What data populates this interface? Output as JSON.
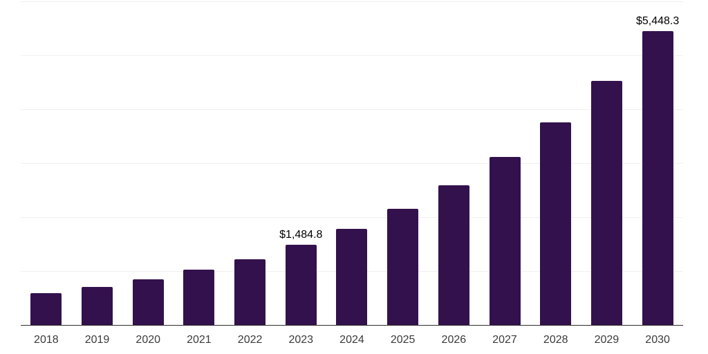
{
  "chart_data": {
    "type": "bar",
    "title": "",
    "xlabel": "",
    "ylabel": "",
    "categories": [
      "2018",
      "2019",
      "2020",
      "2021",
      "2022",
      "2023",
      "2024",
      "2025",
      "2026",
      "2027",
      "2028",
      "2029",
      "2030"
    ],
    "values": [
      590,
      706,
      846,
      1020,
      1218,
      1484.8,
      1787,
      2152,
      2591,
      3120,
      3757,
      4523,
      5448.3
    ],
    "value_labels": {
      "2023": "$1,484.8",
      "2030": "$5,448.3"
    },
    "ylim": [
      0,
      6000
    ],
    "gridline_step": 1000,
    "grid": "horizontal",
    "legend_position": "none"
  },
  "colors": {
    "bar": "#33114c",
    "axis_line": "#2e2e2e",
    "gridline": "#f0f0f0",
    "tick_label": "#3a3a3a",
    "value_label": "#000000",
    "background": "#ffffff"
  }
}
